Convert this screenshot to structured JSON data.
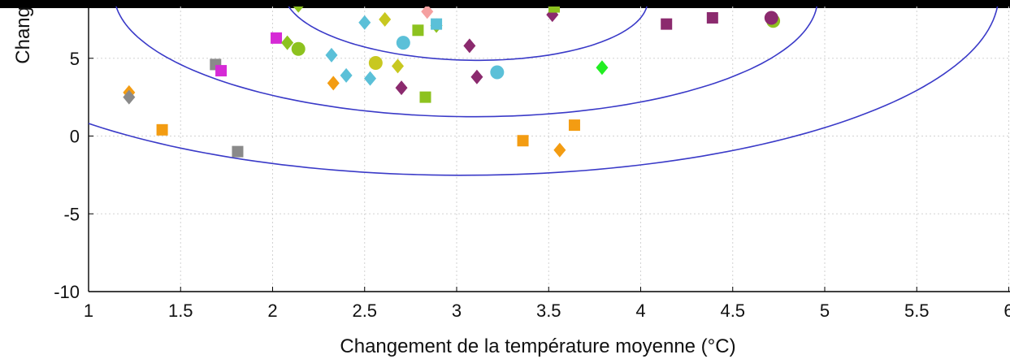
{
  "chart_data": {
    "type": "scatter",
    "xlabel": "Changement de la température moyenne (°C)",
    "ylabel": "Chang",
    "xlim": [
      1,
      6
    ],
    "ylim": [
      -10,
      8
    ],
    "x_ticks": [
      "1",
      "1.5",
      "2",
      "2.5",
      "3",
      "3.5",
      "4",
      "4.5",
      "5",
      "5.5",
      "6"
    ],
    "y_ticks": [
      "5",
      "0",
      "-5",
      "-10"
    ],
    "x_tick_values": [
      1,
      1.5,
      2,
      2.5,
      3,
      3.5,
      4,
      4.5,
      5,
      5.5,
      6
    ],
    "y_tick_values": [
      5,
      0,
      -5,
      -10
    ],
    "grid": true,
    "contour_color": "#3a3ac8",
    "contours": [
      {
        "label": "",
        "center": [
          3.05,
          9.0
        ],
        "semi_axes": [
          0.97,
          4.2
        ],
        "rotation_deg": 28
      },
      {
        "label": "",
        "center": [
          3.05,
          9.0
        ],
        "semi_axes": [
          1.9,
          7.8
        ],
        "rotation_deg": 28
      },
      {
        "label": "",
        "center": [
          3.05,
          9.0
        ],
        "semi_axes": [
          2.9,
          11.5
        ],
        "rotation_deg": 28
      }
    ],
    "points": [
      {
        "x": 1.22,
        "y": 2.8,
        "shape": "diamond",
        "color": "#f39c12"
      },
      {
        "x": 1.22,
        "y": 2.5,
        "shape": "diamond",
        "color": "#8a8a8a"
      },
      {
        "x": 1.4,
        "y": 0.4,
        "shape": "square",
        "color": "#f39c12"
      },
      {
        "x": 1.69,
        "y": 4.6,
        "shape": "square",
        "color": "#8a8a8a"
      },
      {
        "x": 1.72,
        "y": 4.2,
        "shape": "square",
        "color": "#d62ad6"
      },
      {
        "x": 1.81,
        "y": -1.0,
        "shape": "square",
        "color": "#8a8a8a"
      },
      {
        "x": 2.02,
        "y": 6.3,
        "shape": "square",
        "color": "#d62ad6"
      },
      {
        "x": 2.08,
        "y": 6.0,
        "shape": "diamond",
        "color": "#8dc21f"
      },
      {
        "x": 2.14,
        "y": 5.6,
        "shape": "circle",
        "color": "#8dc21f"
      },
      {
        "x": 2.14,
        "y": 8.4,
        "shape": "diamond",
        "color": "#8dc21f"
      },
      {
        "x": 2.32,
        "y": 5.2,
        "shape": "diamond",
        "color": "#5bc0d8"
      },
      {
        "x": 2.33,
        "y": 3.4,
        "shape": "diamond",
        "color": "#f39c12"
      },
      {
        "x": 2.4,
        "y": 3.9,
        "shape": "diamond",
        "color": "#5bc0d8"
      },
      {
        "x": 2.5,
        "y": 7.3,
        "shape": "diamond",
        "color": "#5bc0d8"
      },
      {
        "x": 2.53,
        "y": 3.7,
        "shape": "diamond",
        "color": "#5bc0d8"
      },
      {
        "x": 2.56,
        "y": 4.7,
        "shape": "circle",
        "color": "#c8c820"
      },
      {
        "x": 2.61,
        "y": 7.5,
        "shape": "diamond",
        "color": "#c8c820"
      },
      {
        "x": 2.68,
        "y": 4.5,
        "shape": "diamond",
        "color": "#c8c820"
      },
      {
        "x": 2.7,
        "y": 3.1,
        "shape": "diamond",
        "color": "#8b2a6e"
      },
      {
        "x": 2.71,
        "y": 6.0,
        "shape": "circle",
        "color": "#5bc0d8"
      },
      {
        "x": 2.79,
        "y": 6.8,
        "shape": "square",
        "color": "#8dc21f"
      },
      {
        "x": 2.83,
        "y": 2.5,
        "shape": "square",
        "color": "#8dc21f"
      },
      {
        "x": 2.84,
        "y": 8.0,
        "shape": "diamond",
        "color": "#f5a0a0"
      },
      {
        "x": 2.89,
        "y": 7.1,
        "shape": "diamond",
        "color": "#8dc21f"
      },
      {
        "x": 2.89,
        "y": 7.2,
        "shape": "square",
        "color": "#5bc0d8"
      },
      {
        "x": 3.07,
        "y": 5.8,
        "shape": "diamond",
        "color": "#8b2a6e"
      },
      {
        "x": 3.11,
        "y": 3.8,
        "shape": "diamond",
        "color": "#8b2a6e"
      },
      {
        "x": 3.22,
        "y": 4.1,
        "shape": "circle",
        "color": "#5bc0d8"
      },
      {
        "x": 3.36,
        "y": -0.3,
        "shape": "square",
        "color": "#f39c12"
      },
      {
        "x": 3.52,
        "y": 7.8,
        "shape": "diamond",
        "color": "#8b2a6e"
      },
      {
        "x": 3.53,
        "y": 8.3,
        "shape": "square",
        "color": "#8dc21f"
      },
      {
        "x": 3.56,
        "y": -0.9,
        "shape": "diamond",
        "color": "#f39c12"
      },
      {
        "x": 3.64,
        "y": 0.7,
        "shape": "square",
        "color": "#f39c12"
      },
      {
        "x": 3.79,
        "y": 4.4,
        "shape": "diamond",
        "color": "#22ee22"
      },
      {
        "x": 4.14,
        "y": 7.2,
        "shape": "square",
        "color": "#8b2a6e"
      },
      {
        "x": 4.39,
        "y": 7.6,
        "shape": "square",
        "color": "#8b2a6e"
      },
      {
        "x": 4.72,
        "y": 7.4,
        "shape": "circle",
        "color": "#8dc21f"
      },
      {
        "x": 4.71,
        "y": 7.6,
        "shape": "circle",
        "color": "#8b2a6e"
      }
    ]
  }
}
